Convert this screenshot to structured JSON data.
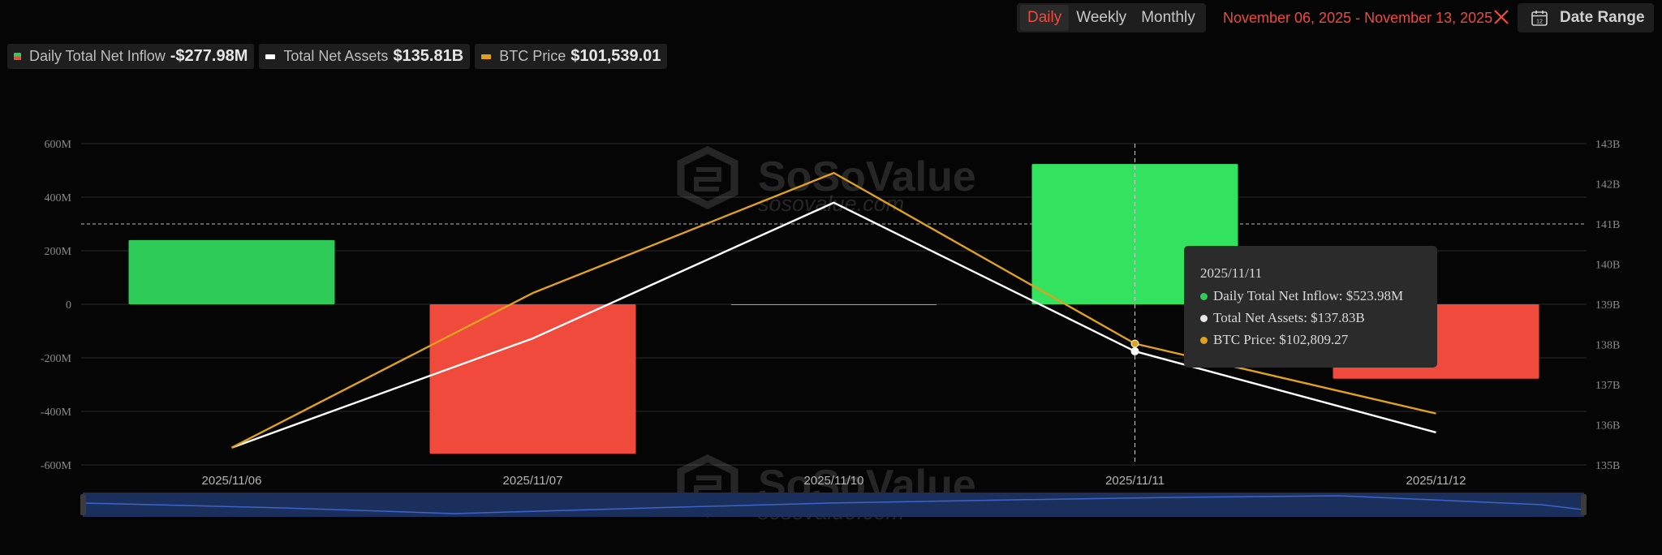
{
  "controls": {
    "periods": [
      "Daily",
      "Weekly",
      "Monthly"
    ],
    "active_period": "Daily",
    "date_range_text": "November 06, 2025 - November 13, 2025",
    "date_range_button": "Date Range"
  },
  "legend": [
    {
      "name": "Daily Total Net Inflow",
      "value": "-$277.98M"
    },
    {
      "name": "Total Net Assets",
      "value": "$135.81B"
    },
    {
      "name": "BTC Price",
      "value": "$101,539.01"
    }
  ],
  "watermark": {
    "brand": "SoSoValue",
    "site": "sosovalue.com"
  },
  "tooltip": {
    "date": "2025/11/11",
    "rows": [
      {
        "label": "Daily Total Net Inflow: $523.98M",
        "color": "#2fcc56"
      },
      {
        "label": "Total Net Assets: $137.83B",
        "color": "#e8e8e8"
      },
      {
        "label": "BTC Price: $102,809.27",
        "color": "#e0a21e"
      }
    ]
  },
  "chart_data": {
    "type": "bar",
    "categories": [
      "2025/11/06",
      "2025/11/07",
      "2025/11/10",
      "2025/11/11",
      "2025/11/12"
    ],
    "bar_series": {
      "name": "Daily Total Net Inflow",
      "values": [
        239.8,
        -558.4,
        0,
        523.98,
        -277.98
      ],
      "unit": "M USD",
      "positive_color": "#2fcc56",
      "negative_color": "#ef4a3c"
    },
    "line_series": [
      {
        "name": "Total Net Assets",
        "values": [
          135.43,
          138.15,
          141.53,
          137.83,
          135.81
        ],
        "axis": "right",
        "color": "#ffffff"
      },
      {
        "name": "BTC Price",
        "values": [
          135.43,
          139.28,
          142.27,
          138.02,
          136.28
        ],
        "axis": "right",
        "color": "#e0a21e"
      }
    ],
    "y_left": {
      "ticks": [
        "600M",
        "400M",
        "200M",
        "0",
        "-200M",
        "-400M",
        "-600M"
      ],
      "min": -600,
      "max": 600
    },
    "y_right": {
      "ticks": [
        "143B",
        "142B",
        "141B",
        "140B",
        "139B",
        "138B",
        "137B",
        "136B",
        "135B"
      ],
      "min": 135,
      "max": 143
    },
    "crosshair": {
      "category": "2025/11/11",
      "y_right_value": 141
    },
    "grid": true
  }
}
